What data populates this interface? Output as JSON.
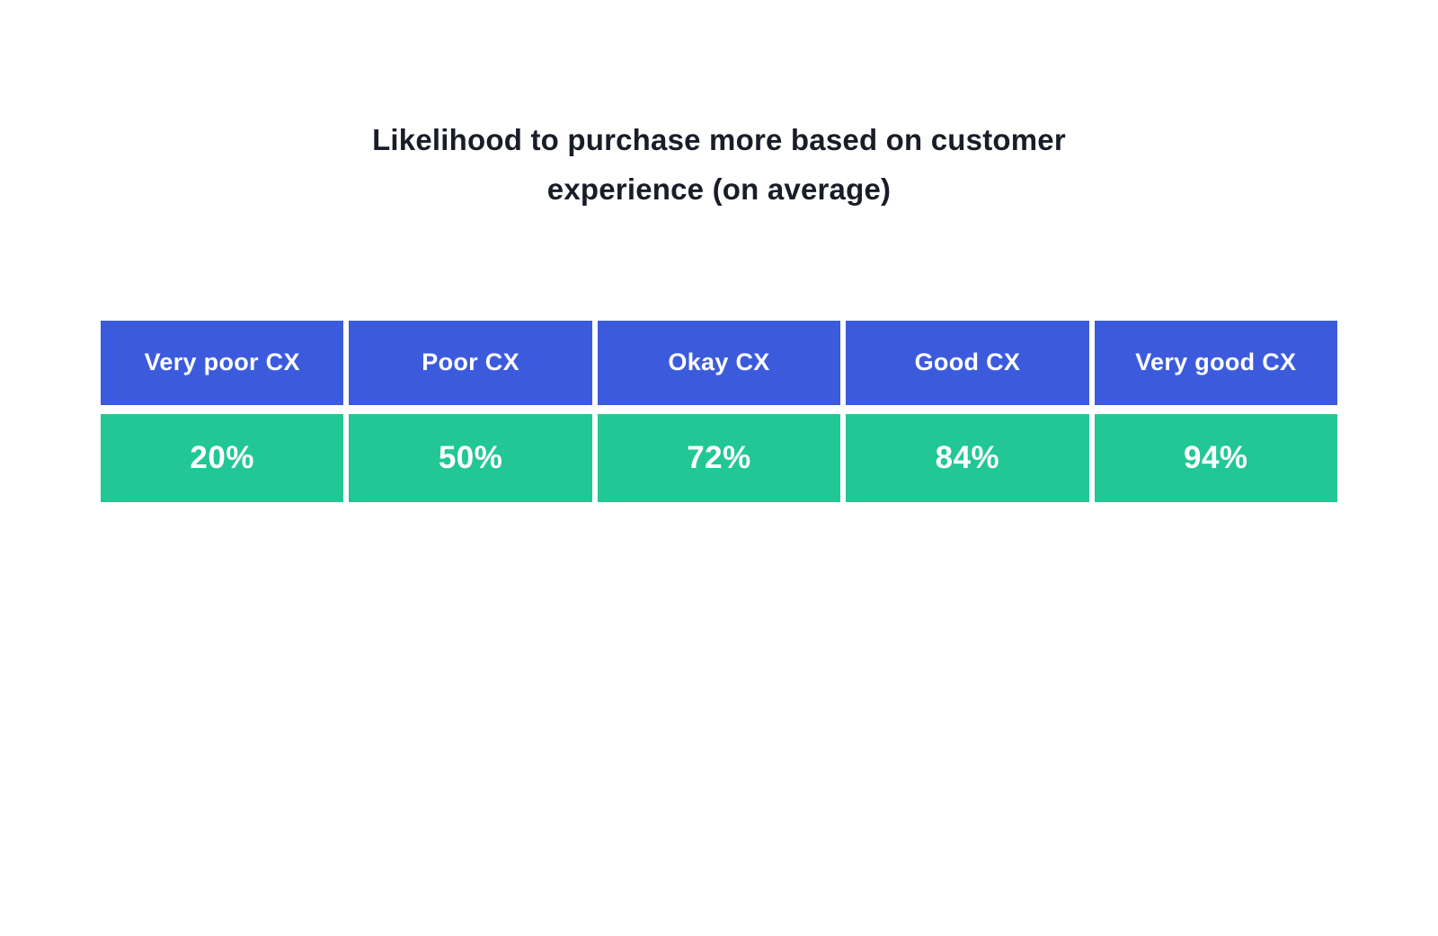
{
  "title": "Likelihood to purchase more based on customer experience (on average)",
  "colors": {
    "background": "#ffffff",
    "header_bg": "#3c5bdc",
    "value_bg": "#22c795",
    "title_text": "#191d28",
    "cell_text": "#ffffff"
  },
  "chart_data": {
    "type": "table",
    "title": "Likelihood to purchase more based on customer experience (on average)",
    "categories": [
      "Very poor CX",
      "Poor CX",
      "Okay CX",
      "Good CX",
      "Very good CX"
    ],
    "values": [
      20,
      50,
      72,
      84,
      94
    ],
    "value_labels": [
      "20%",
      "50%",
      "72%",
      "84%",
      "94%"
    ],
    "unit": "%",
    "legend": "none",
    "grid": "off",
    "layout": "two-row table: blue category header row on top, green percentage value row below"
  }
}
